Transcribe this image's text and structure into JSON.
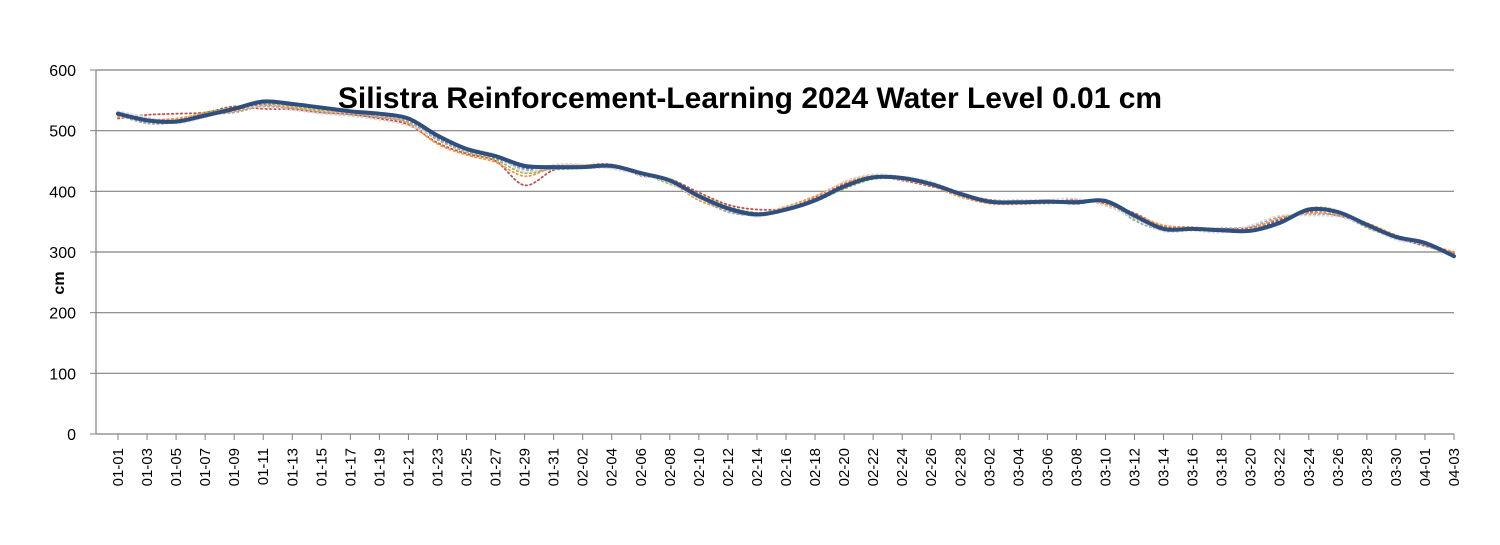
{
  "chart_data": {
    "type": "line",
    "title": "Silistra Reinforcement-Learning 2024 Water Level 0.01 cm",
    "xlabel": "",
    "ylabel": "cm",
    "ylim": [
      0,
      600
    ],
    "yticks": [
      0,
      100,
      200,
      300,
      400,
      500,
      600
    ],
    "grid": "horizontal",
    "legend": "none",
    "x": [
      "01-01",
      "01-03",
      "01-05",
      "01-07",
      "01-09",
      "01-11",
      "01-13",
      "01-15",
      "01-17",
      "01-19",
      "01-21",
      "01-23",
      "01-25",
      "01-27",
      "01-29",
      "01-31",
      "02-02",
      "02-04",
      "02-06",
      "02-08",
      "02-10",
      "02-12",
      "02-14",
      "02-16",
      "02-18",
      "02-20",
      "02-22",
      "02-24",
      "02-26",
      "02-28",
      "03-02",
      "03-04",
      "03-06",
      "03-08",
      "03-10",
      "03-12",
      "03-14",
      "03-16",
      "03-18",
      "03-20",
      "03-22",
      "03-24",
      "03-26",
      "03-28",
      "03-30",
      "04-01",
      "04-03"
    ],
    "series": [
      {
        "color": "#2F4F7F",
        "style": "solid",
        "values": [
          528,
          517,
          515,
          525,
          536,
          548,
          544,
          538,
          532,
          528,
          520,
          492,
          470,
          458,
          442,
          440,
          440,
          442,
          430,
          418,
          392,
          372,
          362,
          370,
          385,
          408,
          423,
          422,
          412,
          396,
          383,
          382,
          383,
          382,
          384,
          360,
          338,
          338,
          336,
          335,
          348,
          370,
          366,
          345,
          325,
          315,
          293
        ]
      },
      {
        "color": "#4472C4",
        "style": "dotted",
        "values": [
          525,
          515,
          516,
          527,
          534,
          544,
          541,
          536,
          531,
          526,
          518,
          488,
          468,
          455,
          438,
          442,
          442,
          440,
          428,
          415,
          392,
          369,
          360,
          371,
          387,
          410,
          424,
          420,
          410,
          393,
          381,
          380,
          385,
          380,
          385,
          358,
          337,
          337,
          335,
          337,
          352,
          368,
          364,
          343,
          322,
          312,
          295
        ]
      },
      {
        "color": "#C0504D",
        "style": "dotted",
        "values": [
          520,
          526,
          528,
          530,
          540,
          536,
          535,
          530,
          527,
          520,
          510,
          480,
          462,
          450,
          410,
          435,
          442,
          444,
          426,
          420,
          398,
          378,
          370,
          372,
          390,
          412,
          425,
          418,
          408,
          396,
          386,
          384,
          382,
          386,
          380,
          364,
          342,
          340,
          338,
          340,
          354,
          366,
          360,
          346,
          324,
          310,
          298
        ]
      },
      {
        "color": "#9BBB59",
        "style": "dotted",
        "values": [
          530,
          520,
          518,
          530,
          538,
          546,
          540,
          534,
          530,
          522,
          515,
          485,
          465,
          452,
          430,
          438,
          440,
          441,
          430,
          412,
          395,
          375,
          365,
          369,
          383,
          404,
          420,
          421,
          414,
          398,
          384,
          381,
          380,
          383,
          382,
          355,
          340,
          336,
          334,
          334,
          346,
          372,
          368,
          340,
          326,
          316,
          294
        ]
      },
      {
        "color": "#F79646",
        "style": "dotted",
        "values": [
          523,
          518,
          520,
          528,
          532,
          542,
          538,
          532,
          529,
          524,
          512,
          478,
          460,
          448,
          425,
          440,
          443,
          443,
          432,
          416,
          385,
          370,
          363,
          375,
          392,
          414,
          426,
          419,
          409,
          391,
          380,
          379,
          381,
          385,
          378,
          362,
          344,
          341,
          337,
          338,
          356,
          364,
          362,
          348,
          328,
          314,
          300
        ]
      },
      {
        "color": "#A6A6A6",
        "style": "dotted",
        "values": [
          526,
          512,
          514,
          526,
          530,
          540,
          536,
          530,
          526,
          522,
          514,
          486,
          466,
          456,
          436,
          436,
          438,
          439,
          431,
          419,
          390,
          366,
          361,
          368,
          386,
          406,
          422,
          423,
          413,
          395,
          382,
          383,
          384,
          379,
          386,
          352,
          336,
          339,
          339,
          342,
          358,
          362,
          360,
          341,
          321,
          311,
          292
        ]
      },
      {
        "color": "#D9D9D9",
        "style": "dotted",
        "values": [
          532,
          522,
          512,
          522,
          537,
          538,
          534,
          528,
          524,
          518,
          508,
          490,
          472,
          460,
          432,
          444,
          444,
          437,
          427,
          414,
          388,
          374,
          358,
          374,
          388,
          416,
          428,
          424,
          416,
          397,
          385,
          386,
          386,
          388,
          376,
          356,
          334,
          335,
          332,
          344,
          360,
          360,
          358,
          344,
          320,
          313,
          296
        ]
      }
    ]
  }
}
